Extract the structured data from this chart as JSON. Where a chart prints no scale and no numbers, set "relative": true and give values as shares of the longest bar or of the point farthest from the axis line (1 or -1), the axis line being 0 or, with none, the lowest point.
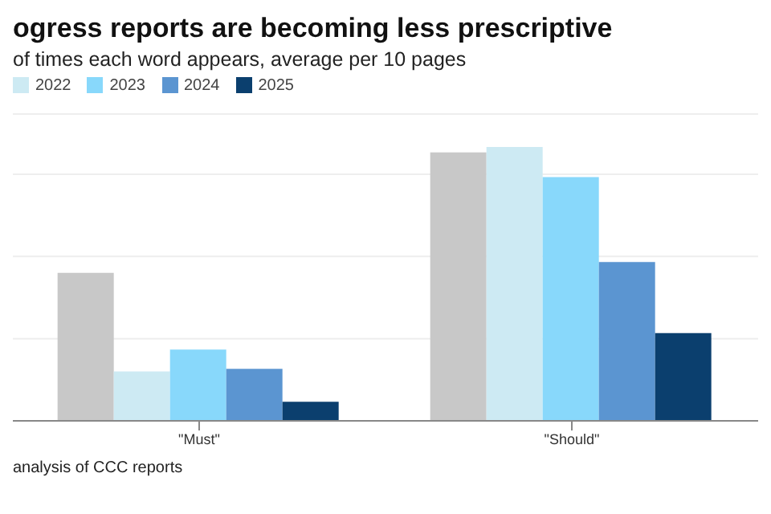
{
  "chart_data": {
    "type": "bar",
    "title": "ogress reports are becoming less prescriptive",
    "subtitle": "of times each word appears, average per 10 pages",
    "categories": [
      "\"Must\"",
      "\"Should\""
    ],
    "series": [
      {
        "color": "#c8c8c8",
        "values": [
          0.54,
          0.98
        ]
      },
      {
        "name": "2022",
        "color": "#cdeaf3",
        "values": [
          0.18,
          1
        ]
      },
      {
        "name": "2023",
        "color": "#88d8fb",
        "values": [
          0.26,
          0.89
        ]
      },
      {
        "name": "2024",
        "color": "#5b95d1",
        "values": [
          0.19,
          0.58
        ]
      },
      {
        "name": "2025",
        "color": "#0b3f6e",
        "values": [
          0.07,
          0.32
        ]
      }
    ],
    "relative": true,
    "grid": "y",
    "legend": "top left",
    "annotations": [
      "analysis of CCC reports"
    ]
  }
}
